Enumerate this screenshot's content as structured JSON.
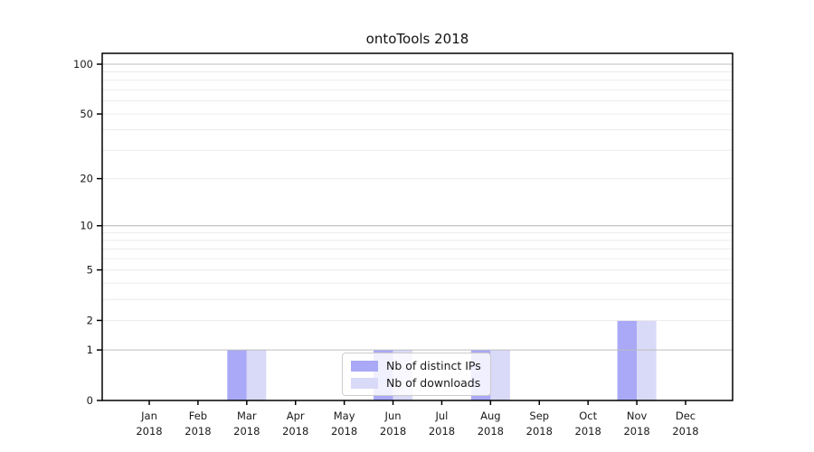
{
  "chart_data": {
    "type": "bar",
    "title": "ontoTools 2018",
    "categories": [
      "Jan",
      "Feb",
      "Mar",
      "Apr",
      "May",
      "Jun",
      "Jul",
      "Aug",
      "Sep",
      "Oct",
      "Nov",
      "Dec"
    ],
    "category_year": "2018",
    "series": [
      {
        "name": "Nb of distinct IPs",
        "color": "#a9a9f7",
        "values": [
          0,
          0,
          1,
          0,
          0,
          1,
          0,
          1,
          0,
          0,
          2,
          0
        ]
      },
      {
        "name": "Nb of downloads",
        "color": "#d9d9f8",
        "values": [
          0,
          0,
          1,
          0,
          0,
          1,
          0,
          1,
          0,
          0,
          2,
          0
        ]
      }
    ],
    "y_ticks": [
      0,
      1,
      2,
      5,
      10,
      20,
      50,
      100
    ],
    "y_scale": "log1p",
    "ylim": [
      0,
      115
    ],
    "grid": {
      "orientation": "horizontal",
      "major_lines": [
        1,
        10,
        100
      ],
      "minor_lines": [
        2,
        3,
        4,
        5,
        6,
        7,
        8,
        9,
        20,
        30,
        40,
        50,
        60,
        70,
        80,
        90
      ],
      "major_color": "#bdbdbd",
      "minor_color": "#ececec"
    },
    "legend": {
      "position": "lower center",
      "entries": [
        "Nb of distinct IPs",
        "Nb of downloads"
      ]
    },
    "axis_color": "#000000",
    "tick_label_color": "#1a1a1a",
    "background": "#ffffff"
  }
}
